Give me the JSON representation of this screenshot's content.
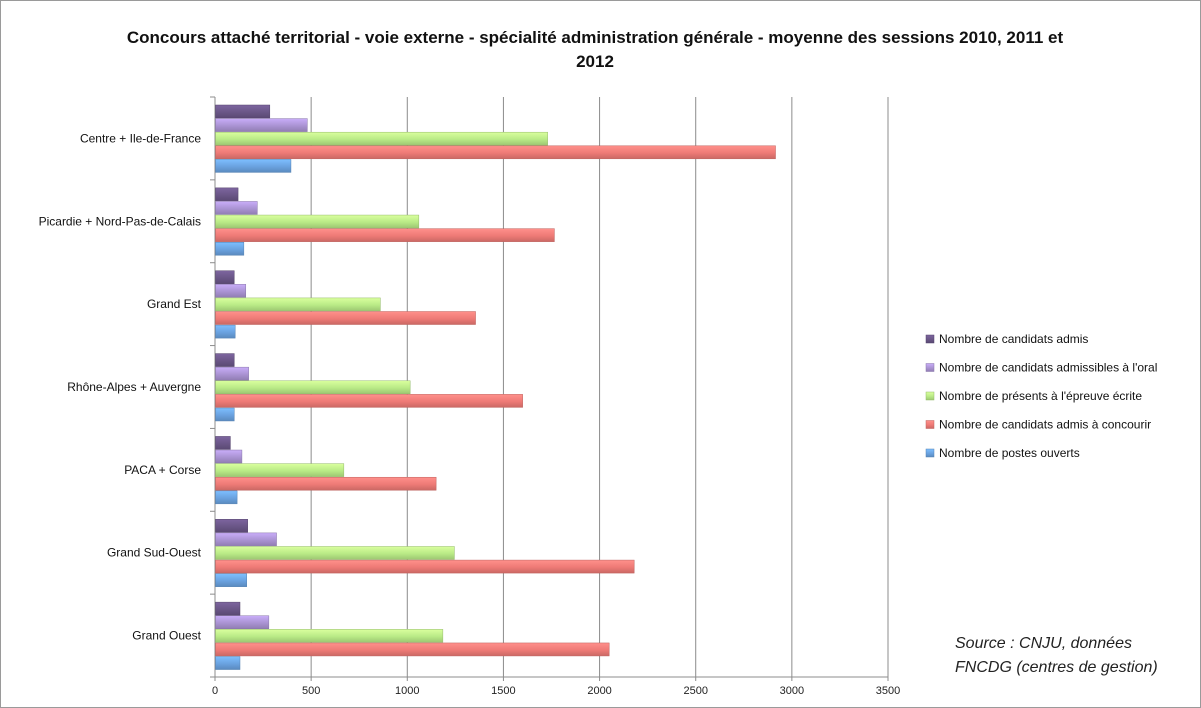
{
  "chart_data": {
    "type": "bar",
    "orientation": "horizontal",
    "title": "Concours attaché territorial - voie externe - spécialité administration générale - moyenne des sessions 2010, 2011 et 2012",
    "categories": [
      "Centre + Ile-de-France",
      "Picardie + Nord-Pas-de-Calais",
      "Grand Est",
      "Rhône-Alpes + Auvergne",
      "PACA + Corse",
      "Grand Sud-Ouest",
      "Grand Ouest"
    ],
    "series": [
      {
        "name": "Nombre de candidats admis",
        "color": "#6a5687",
        "values": [
          285,
          120,
          100,
          100,
          80,
          170,
          130
        ]
      },
      {
        "name": "Nombre de candidats admissibles à l'oral",
        "color": "#aa93d3",
        "values": [
          480,
          220,
          160,
          175,
          140,
          320,
          280
        ]
      },
      {
        "name": "Nombre de présents à l'épreuve écrite",
        "color": "#b9ea86",
        "values": [
          1730,
          1060,
          860,
          1015,
          670,
          1245,
          1185
        ]
      },
      {
        "name": "Nombre de candidats admis à concourir",
        "color": "#ee7a76",
        "values": [
          2915,
          1765,
          1355,
          1600,
          1150,
          2180,
          2050
        ]
      },
      {
        "name": "Nombre de postes ouverts",
        "color": "#6aa2e0",
        "values": [
          395,
          150,
          105,
          100,
          115,
          165,
          130
        ]
      }
    ],
    "xlim": [
      0,
      3500
    ],
    "xticks": [
      0,
      500,
      1000,
      1500,
      2000,
      2500,
      3000,
      3500
    ],
    "xtick_labels": [
      "0",
      "500",
      "1000",
      "1500",
      "2000",
      "2500",
      "3000",
      "3500"
    ],
    "xlabel": "",
    "ylabel": "",
    "grid": true,
    "legend_position": "right"
  },
  "annotation": {
    "source_line1": "Source : CNJU, données",
    "source_line2": "FNCDG (centres de gestion)"
  }
}
